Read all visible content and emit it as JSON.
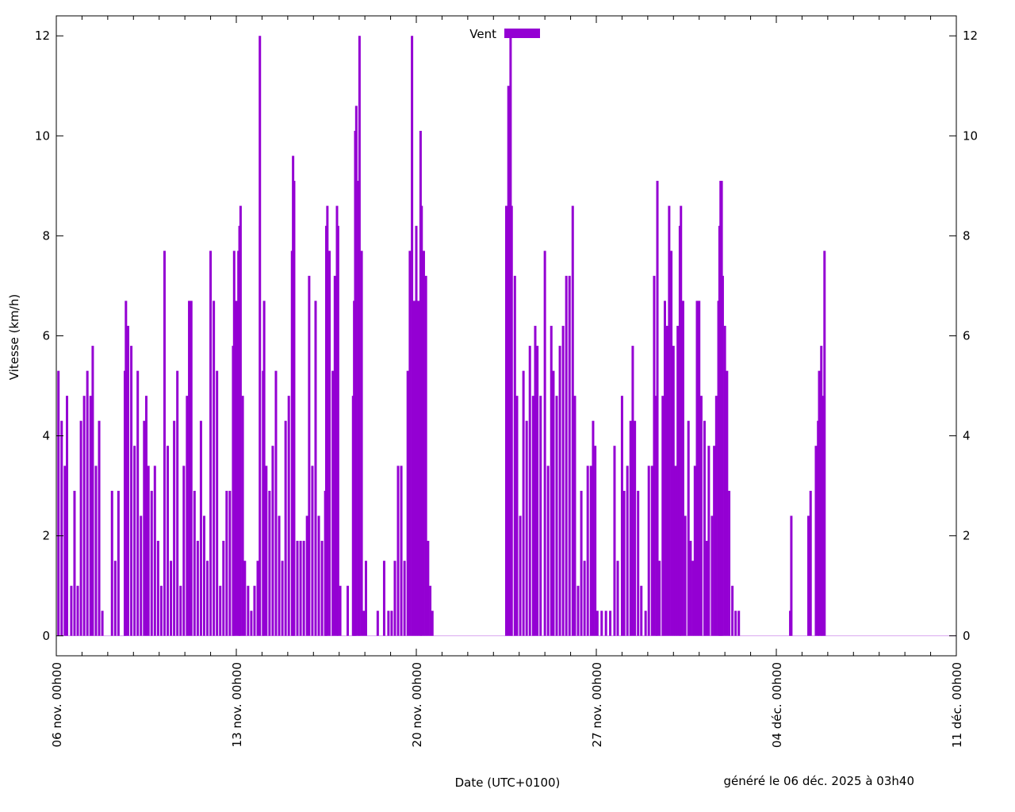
{
  "chart_data": {
    "type": "bar",
    "title": "",
    "xlabel": "Date (UTC+0100)",
    "ylabel": "Vitesse (km/h)",
    "footer": "généré le 06 déc. 2025 à 03h40",
    "legend": {
      "label": "Vent",
      "position": "top-center"
    },
    "color": "#9400d3",
    "xlim": [
      "2025-11-06T00:00",
      "2025-12-11T00:00"
    ],
    "ylim": [
      -0.4,
      12.4
    ],
    "yticks": [
      0,
      2,
      4,
      6,
      8,
      10,
      12
    ],
    "xticks": [
      {
        "at": "2025-11-06",
        "label": "06 nov. 00h00"
      },
      {
        "at": "2025-11-13",
        "label": "13 nov. 00h00"
      },
      {
        "at": "2025-11-20",
        "label": "20 nov. 00h00"
      },
      {
        "at": "2025-11-27",
        "label": "27 nov. 00h00"
      },
      {
        "at": "2025-12-04",
        "label": "04 déc. 00h00"
      },
      {
        "at": "2025-12-11",
        "label": "11 déc. 00h00"
      }
    ],
    "minor_tick_hours": 24,
    "grid": false,
    "series": [
      {
        "name": "Vent",
        "points": [
          [
            "2025-11-06T02:00",
            5.3
          ],
          [
            "2025-11-06T05:00",
            4.3
          ],
          [
            "2025-11-06T08:00",
            3.4
          ],
          [
            "2025-11-06T10:00",
            4.8
          ],
          [
            "2025-11-06T14:00",
            1.0
          ],
          [
            "2025-11-06T17:00",
            2.9
          ],
          [
            "2025-11-06T20:00",
            1.0
          ],
          [
            "2025-11-06T23:00",
            4.3
          ],
          [
            "2025-11-07T02:00",
            4.8
          ],
          [
            "2025-11-07T05:00",
            5.3
          ],
          [
            "2025-11-07T08:00",
            4.8
          ],
          [
            "2025-11-07T10:00",
            5.8
          ],
          [
            "2025-11-07T13:00",
            3.4
          ],
          [
            "2025-11-07T16:00",
            4.3
          ],
          [
            "2025-11-07T19:00",
            0.5
          ],
          [
            "2025-11-08T04:00",
            2.9
          ],
          [
            "2025-11-08T07:00",
            1.5
          ],
          [
            "2025-11-08T10:00",
            2.9
          ],
          [
            "2025-11-08T16:00",
            5.3
          ],
          [
            "2025-11-08T17:00",
            6.7
          ],
          [
            "2025-11-08T19:00",
            6.2
          ],
          [
            "2025-11-08T22:00",
            5.8
          ],
          [
            "2025-11-09T01:00",
            3.8
          ],
          [
            "2025-11-09T04:00",
            5.3
          ],
          [
            "2025-11-09T07:00",
            2.4
          ],
          [
            "2025-11-09T10:00",
            4.3
          ],
          [
            "2025-11-09T12:00",
            4.8
          ],
          [
            "2025-11-09T14:00",
            3.4
          ],
          [
            "2025-11-09T17:00",
            2.9
          ],
          [
            "2025-11-09T20:00",
            3.4
          ],
          [
            "2025-11-09T23:00",
            1.9
          ],
          [
            "2025-11-10T02:00",
            1.0
          ],
          [
            "2025-11-10T05:00",
            7.7
          ],
          [
            "2025-11-10T08:00",
            3.8
          ],
          [
            "2025-11-10T11:00",
            1.5
          ],
          [
            "2025-11-10T14:00",
            4.3
          ],
          [
            "2025-11-10T17:00",
            5.3
          ],
          [
            "2025-11-10T20:00",
            1.0
          ],
          [
            "2025-11-10T23:00",
            3.4
          ],
          [
            "2025-11-11T02:00",
            4.8
          ],
          [
            "2025-11-11T04:00",
            6.7
          ],
          [
            "2025-11-11T06:00",
            6.7
          ],
          [
            "2025-11-11T09:00",
            2.9
          ],
          [
            "2025-11-11T12:00",
            1.9
          ],
          [
            "2025-11-11T15:00",
            4.3
          ],
          [
            "2025-11-11T18:00",
            2.4
          ],
          [
            "2025-11-11T21:00",
            1.5
          ],
          [
            "2025-11-12T00:00",
            7.7
          ],
          [
            "2025-11-12T03:00",
            6.7
          ],
          [
            "2025-11-12T06:00",
            5.3
          ],
          [
            "2025-11-12T09:00",
            1.0
          ],
          [
            "2025-11-12T12:00",
            1.9
          ],
          [
            "2025-11-12T15:00",
            2.9
          ],
          [
            "2025-11-12T18:00",
            2.9
          ],
          [
            "2025-11-12T21:00",
            5.8
          ],
          [
            "2025-11-12T22:00",
            7.7
          ],
          [
            "2025-11-13T00:00",
            6.7
          ],
          [
            "2025-11-13T02:00",
            7.7
          ],
          [
            "2025-11-13T03:00",
            8.2
          ],
          [
            "2025-11-13T04:00",
            8.6
          ],
          [
            "2025-11-13T06:00",
            4.8
          ],
          [
            "2025-11-13T08:00",
            1.5
          ],
          [
            "2025-11-13T11:00",
            1.0
          ],
          [
            "2025-11-13T14:00",
            0.5
          ],
          [
            "2025-11-13T17:00",
            1.0
          ],
          [
            "2025-11-13T20:00",
            1.5
          ],
          [
            "2025-11-13T22:00",
            12.0
          ],
          [
            "2025-11-14T01:00",
            5.3
          ],
          [
            "2025-11-14T02:00",
            6.7
          ],
          [
            "2025-11-14T04:00",
            3.4
          ],
          [
            "2025-11-14T07:00",
            2.9
          ],
          [
            "2025-11-14T10:00",
            3.8
          ],
          [
            "2025-11-14T13:00",
            5.3
          ],
          [
            "2025-11-14T16:00",
            2.4
          ],
          [
            "2025-11-14T19:00",
            1.5
          ],
          [
            "2025-11-14T22:00",
            4.3
          ],
          [
            "2025-11-15T01:00",
            4.8
          ],
          [
            "2025-11-15T04:00",
            7.7
          ],
          [
            "2025-11-15T05:00",
            9.6
          ],
          [
            "2025-11-15T06:00",
            9.1
          ],
          [
            "2025-11-15T09:00",
            1.9
          ],
          [
            "2025-11-15T12:00",
            1.9
          ],
          [
            "2025-11-15T15:00",
            1.9
          ],
          [
            "2025-11-15T18:00",
            2.4
          ],
          [
            "2025-11-15T20:00",
            7.2
          ],
          [
            "2025-11-15T23:00",
            3.4
          ],
          [
            "2025-11-16T02:00",
            6.7
          ],
          [
            "2025-11-16T05:00",
            2.4
          ],
          [
            "2025-11-16T08:00",
            1.9
          ],
          [
            "2025-11-16T11:00",
            2.9
          ],
          [
            "2025-11-16T12:00",
            8.2
          ],
          [
            "2025-11-16T13:00",
            8.6
          ],
          [
            "2025-11-16T15:00",
            7.7
          ],
          [
            "2025-11-16T18:00",
            5.3
          ],
          [
            "2025-11-16T20:00",
            7.2
          ],
          [
            "2025-11-16T22:00",
            8.6
          ],
          [
            "2025-11-16T23:00",
            8.2
          ],
          [
            "2025-11-17T01:00",
            1.0
          ],
          [
            "2025-11-17T08:00",
            1.0
          ],
          [
            "2025-11-17T13:00",
            4.8
          ],
          [
            "2025-11-17T14:00",
            6.7
          ],
          [
            "2025-11-17T15:00",
            10.1
          ],
          [
            "2025-11-17T16:00",
            10.6
          ],
          [
            "2025-11-17T18:00",
            9.1
          ],
          [
            "2025-11-17T19:00",
            12.0
          ],
          [
            "2025-11-17T21:00",
            7.7
          ],
          [
            "2025-11-17T23:00",
            0.5
          ],
          [
            "2025-11-18T01:00",
            1.5
          ],
          [
            "2025-11-18T12:00",
            0.5
          ],
          [
            "2025-11-18T18:00",
            1.5
          ],
          [
            "2025-11-18T22:00",
            0.5
          ],
          [
            "2025-11-19T01:00",
            0.5
          ],
          [
            "2025-11-19T04:00",
            1.5
          ],
          [
            "2025-11-19T07:00",
            3.4
          ],
          [
            "2025-11-19T10:00",
            3.4
          ],
          [
            "2025-11-19T13:00",
            1.5
          ],
          [
            "2025-11-19T16:00",
            5.3
          ],
          [
            "2025-11-19T18:00",
            7.7
          ],
          [
            "2025-11-19T20:00",
            12.0
          ],
          [
            "2025-11-19T22:00",
            6.7
          ],
          [
            "2025-11-20T00:00",
            8.2
          ],
          [
            "2025-11-20T02:00",
            6.7
          ],
          [
            "2025-11-20T04:00",
            10.1
          ],
          [
            "2025-11-20T05:00",
            8.6
          ],
          [
            "2025-11-20T07:00",
            7.7
          ],
          [
            "2025-11-20T09:00",
            7.2
          ],
          [
            "2025-11-20T11:00",
            1.9
          ],
          [
            "2025-11-20T13:00",
            1.0
          ],
          [
            "2025-11-20T15:00",
            0.5
          ],
          [
            "2025-11-23T12:00",
            8.6
          ],
          [
            "2025-11-23T14:00",
            11.0
          ],
          [
            "2025-11-23T16:00",
            12.0
          ],
          [
            "2025-11-23T17:00",
            8.6
          ],
          [
            "2025-11-23T20:00",
            7.2
          ],
          [
            "2025-11-23T22:00",
            4.8
          ],
          [
            "2025-11-24T01:00",
            2.4
          ],
          [
            "2025-11-24T04:00",
            5.3
          ],
          [
            "2025-11-24T07:00",
            4.3
          ],
          [
            "2025-11-24T10:00",
            5.8
          ],
          [
            "2025-11-24T13:00",
            4.8
          ],
          [
            "2025-11-24T15:00",
            6.2
          ],
          [
            "2025-11-24T17:00",
            5.8
          ],
          [
            "2025-11-24T20:00",
            4.8
          ],
          [
            "2025-11-25T00:00",
            7.7
          ],
          [
            "2025-11-25T03:00",
            3.4
          ],
          [
            "2025-11-25T06:00",
            6.2
          ],
          [
            "2025-11-25T08:00",
            5.3
          ],
          [
            "2025-11-25T11:00",
            4.8
          ],
          [
            "2025-11-25T14:00",
            5.8
          ],
          [
            "2025-11-25T17:00",
            6.2
          ],
          [
            "2025-11-25T20:00",
            7.2
          ],
          [
            "2025-11-25T23:00",
            7.2
          ],
          [
            "2025-11-26T02:00",
            8.6
          ],
          [
            "2025-11-26T04:00",
            4.8
          ],
          [
            "2025-11-26T07:00",
            1.0
          ],
          [
            "2025-11-26T10:00",
            2.9
          ],
          [
            "2025-11-26T13:00",
            1.5
          ],
          [
            "2025-11-26T16:00",
            3.4
          ],
          [
            "2025-11-26T19:00",
            3.4
          ],
          [
            "2025-11-26T21:00",
            4.3
          ],
          [
            "2025-11-26T23:00",
            3.8
          ],
          [
            "2025-11-27T01:00",
            0.5
          ],
          [
            "2025-11-27T05:00",
            0.5
          ],
          [
            "2025-11-27T09:00",
            0.5
          ],
          [
            "2025-11-27T13:00",
            0.5
          ],
          [
            "2025-11-27T17:00",
            3.8
          ],
          [
            "2025-11-27T20:00",
            1.5
          ],
          [
            "2025-11-28T00:00",
            4.8
          ],
          [
            "2025-11-28T02:00",
            2.9
          ],
          [
            "2025-11-28T05:00",
            3.4
          ],
          [
            "2025-11-28T08:00",
            4.3
          ],
          [
            "2025-11-28T10:00",
            5.8
          ],
          [
            "2025-11-28T12:00",
            4.3
          ],
          [
            "2025-11-28T15:00",
            2.9
          ],
          [
            "2025-11-28T18:00",
            1.0
          ],
          [
            "2025-11-28T22:00",
            0.5
          ],
          [
            "2025-11-29T01:00",
            3.4
          ],
          [
            "2025-11-29T04:00",
            3.4
          ],
          [
            "2025-11-29T06:00",
            7.2
          ],
          [
            "2025-11-29T08:00",
            4.8
          ],
          [
            "2025-11-29T09:00",
            9.1
          ],
          [
            "2025-11-29T11:00",
            1.5
          ],
          [
            "2025-11-29T14:00",
            4.8
          ],
          [
            "2025-11-29T16:00",
            6.7
          ],
          [
            "2025-11-29T18:00",
            6.2
          ],
          [
            "2025-11-29T20:00",
            8.6
          ],
          [
            "2025-11-29T22:00",
            7.7
          ],
          [
            "2025-11-30T00:00",
            5.8
          ],
          [
            "2025-11-30T02:00",
            3.4
          ],
          [
            "2025-11-30T04:00",
            6.2
          ],
          [
            "2025-11-30T06:00",
            8.2
          ],
          [
            "2025-11-30T07:00",
            8.6
          ],
          [
            "2025-11-30T09:00",
            6.7
          ],
          [
            "2025-11-30T11:00",
            2.4
          ],
          [
            "2025-11-30T14:00",
            4.3
          ],
          [
            "2025-11-30T16:00",
            1.9
          ],
          [
            "2025-11-30T18:00",
            1.5
          ],
          [
            "2025-11-30T20:00",
            3.4
          ],
          [
            "2025-11-30T22:00",
            6.7
          ],
          [
            "2025-12-01T00:00",
            6.7
          ],
          [
            "2025-12-01T02:00",
            4.8
          ],
          [
            "2025-12-01T05:00",
            4.3
          ],
          [
            "2025-12-01T07:00",
            1.9
          ],
          [
            "2025-12-01T09:00",
            3.8
          ],
          [
            "2025-12-01T12:00",
            2.4
          ],
          [
            "2025-12-01T14:00",
            3.8
          ],
          [
            "2025-12-01T16:00",
            4.8
          ],
          [
            "2025-12-01T18:00",
            6.7
          ],
          [
            "2025-12-01T19:00",
            8.2
          ],
          [
            "2025-12-01T20:00",
            9.1
          ],
          [
            "2025-12-01T21:00",
            9.1
          ],
          [
            "2025-12-01T22:00",
            7.2
          ],
          [
            "2025-12-02T00:00",
            6.2
          ],
          [
            "2025-12-02T02:00",
            5.3
          ],
          [
            "2025-12-02T04:00",
            2.9
          ],
          [
            "2025-12-02T07:00",
            1.0
          ],
          [
            "2025-12-02T10:00",
            0.5
          ],
          [
            "2025-12-02T13:00",
            0.5
          ],
          [
            "2025-12-04T13:00",
            0.5
          ],
          [
            "2025-12-04T14:00",
            2.4
          ],
          [
            "2025-12-05T06:00",
            2.4
          ],
          [
            "2025-12-05T08:00",
            2.9
          ],
          [
            "2025-12-05T13:00",
            3.8
          ],
          [
            "2025-12-05T15:00",
            4.3
          ],
          [
            "2025-12-05T16:00",
            5.3
          ],
          [
            "2025-12-05T18:00",
            5.8
          ],
          [
            "2025-12-05T19:00",
            4.8
          ],
          [
            "2025-12-05T21:00",
            7.7
          ]
        ]
      }
    ]
  }
}
